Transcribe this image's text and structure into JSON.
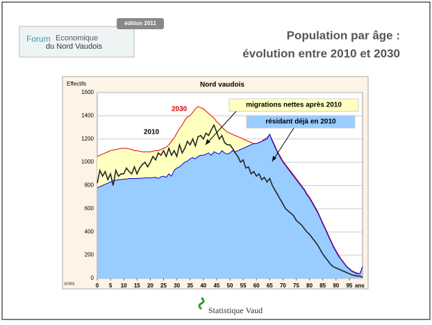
{
  "header": {
    "logo_line1": "Forum",
    "logo_line1b": "Economique",
    "logo_line2": "du Nord Vaudois",
    "edition": "édition 2011",
    "title_line1": "Population par âge :",
    "title_line2": "évolution entre 2010 et 2030"
  },
  "footer": {
    "brand": "Statistique Vaud"
  },
  "chart_data": {
    "type": "area-line",
    "title": "Nord vaudois",
    "y_label": "Effectifs",
    "x_unit": "ans",
    "source": "SCRIS",
    "annotations": [
      "migrations nettes après 2010",
      "résidant déjà en 2010",
      "2030",
      "2010"
    ],
    "x": [
      0,
      1,
      2,
      3,
      4,
      5,
      6,
      7,
      8,
      9,
      10,
      11,
      12,
      13,
      14,
      15,
      16,
      17,
      18,
      19,
      20,
      21,
      22,
      23,
      24,
      25,
      26,
      27,
      28,
      29,
      30,
      31,
      32,
      33,
      34,
      35,
      36,
      37,
      38,
      39,
      40,
      41,
      42,
      43,
      44,
      45,
      46,
      47,
      48,
      49,
      50,
      51,
      52,
      53,
      54,
      55,
      56,
      57,
      58,
      59,
      60,
      61,
      62,
      63,
      64,
      65,
      66,
      67,
      68,
      69,
      70,
      71,
      72,
      73,
      74,
      75,
      76,
      77,
      78,
      79,
      80,
      81,
      82,
      83,
      84,
      85,
      86,
      87,
      88,
      89,
      90,
      91,
      92,
      93,
      94,
      95,
      96,
      97,
      98,
      99,
      100
    ],
    "series": [
      {
        "name": "2030",
        "color": "#e00000",
        "fill": "#ffffc0",
        "values": [
          1050,
          1060,
          1070,
          1080,
          1090,
          1100,
          1105,
          1110,
          1115,
          1120,
          1120,
          1120,
          1115,
          1110,
          1100,
          1100,
          1095,
          1090,
          1090,
          1090,
          1090,
          1095,
          1100,
          1100,
          1110,
          1120,
          1130,
          1150,
          1180,
          1210,
          1250,
          1290,
          1320,
          1360,
          1390,
          1400,
          1430,
          1460,
          1480,
          1470,
          1460,
          1440,
          1420,
          1400,
          1380,
          1350,
          1330,
          1300,
          1280,
          1260,
          1250,
          1240,
          1230,
          1220,
          1210,
          1200,
          1190,
          1180,
          1170,
          1160,
          1160,
          1170,
          1180,
          1200,
          1210,
          1240,
          1190,
          1140,
          1090,
          1050,
          1010,
          980,
          950,
          920,
          890,
          860,
          830,
          800,
          770,
          730,
          700,
          660,
          620,
          580,
          530,
          480,
          430,
          380,
          330,
          280,
          240,
          200,
          165,
          135,
          105,
          85,
          65,
          55,
          45,
          40,
          100
        ]
      },
      {
        "name": "résidant déjà en 2010",
        "color": "#0000e0",
        "fill": "#99ccff",
        "values": [
          780,
          790,
          800,
          810,
          820,
          830,
          840,
          845,
          850,
          850,
          855,
          855,
          860,
          860,
          860,
          860,
          862,
          862,
          865,
          865,
          865,
          868,
          870,
          860,
          875,
          880,
          870,
          900,
          880,
          930,
          950,
          960,
          980,
          1000,
          1010,
          1030,
          1040,
          1030,
          1050,
          1060,
          1060,
          1070,
          1080,
          1060,
          1090,
          1080,
          1070,
          1100,
          1080,
          1070,
          1080,
          1100,
          1090,
          1100,
          1110,
          1120,
          1130,
          1140,
          1150,
          1160,
          1160,
          1170,
          1180,
          1190,
          1200,
          1240,
          1180,
          1130,
          1080,
          1040,
          1000,
          970,
          940,
          910,
          880,
          850,
          820,
          790,
          760,
          720,
          690,
          650,
          610,
          570,
          520,
          470,
          420,
          370,
          320,
          270,
          230,
          190,
          160,
          130,
          100,
          80,
          60,
          50,
          40,
          40,
          100
        ]
      },
      {
        "name": "2010",
        "color": "#222222",
        "values": [
          820,
          930,
          880,
          920,
          850,
          900,
          800,
          930,
          880,
          900,
          900,
          950,
          920,
          900,
          960,
          900,
          950,
          980,
          1000,
          960,
          1000,
          1050,
          1020,
          1080,
          1060,
          1100,
          1050,
          1120,
          1060,
          1100,
          1050,
          1150,
          1080,
          1120,
          1180,
          1150,
          1200,
          1140,
          1220,
          1230,
          1200,
          1250,
          1230,
          1280,
          1320,
          1260,
          1200,
          1230,
          1170,
          1150,
          1150,
          1120,
          1080,
          1050,
          1000,
          1020,
          950,
          960,
          900,
          920,
          880,
          900,
          850,
          870,
          830,
          860,
          800,
          760,
          720,
          680,
          640,
          600,
          580,
          560,
          540,
          500,
          480,
          460,
          430,
          400,
          380,
          350,
          320,
          290,
          250,
          210,
          180,
          150,
          120,
          100,
          90,
          80,
          70,
          60,
          50,
          40,
          30,
          25,
          20,
          20,
          10
        ]
      }
    ],
    "xlim": [
      0,
      100
    ],
    "xticks": [
      0,
      5,
      10,
      15,
      20,
      25,
      30,
      35,
      40,
      45,
      50,
      55,
      60,
      65,
      70,
      75,
      80,
      85,
      90,
      95
    ],
    "ylim": [
      0,
      1600
    ],
    "yticks": [
      0,
      200,
      400,
      600,
      800,
      1000,
      1200,
      1400,
      1600
    ],
    "grid": true
  }
}
